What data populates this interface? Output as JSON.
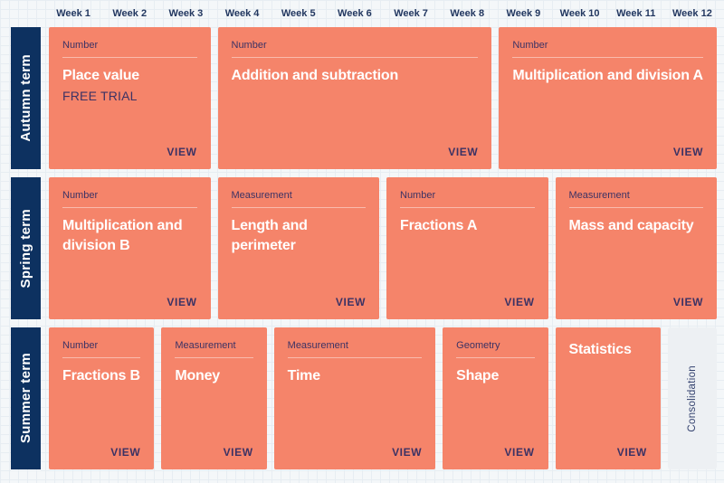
{
  "weeks": [
    "Week 1",
    "Week 2",
    "Week 3",
    "Week 4",
    "Week 5",
    "Week 6",
    "Week 7",
    "Week 8",
    "Week 9",
    "Week 10",
    "Week 11",
    "Week 12"
  ],
  "view_label": "VIEW",
  "colors": {
    "background": "#f4f7f9",
    "gridline": "#e7edf2",
    "navy": "#0d3160",
    "card": "#f5846a",
    "card_text": "#3c3264",
    "week_text": "#223760",
    "consolidation_bg": "#edf0f3",
    "consolidation_text": "#33416e"
  },
  "terms": [
    {
      "label": "Autumn term",
      "blocks": [
        {
          "category": "Number",
          "title": "Place value",
          "subtitle": "FREE TRIAL",
          "span": 3
        },
        {
          "category": "Number",
          "title": "Addition and subtraction",
          "span": 5
        },
        {
          "category": "Number",
          "title": "Multiplication and division A",
          "span": 4
        }
      ]
    },
    {
      "label": "Spring term",
      "blocks": [
        {
          "category": "Number",
          "title": "Multiplication and division B",
          "span": 3
        },
        {
          "category": "Measurement",
          "title": "Length and perimeter",
          "span": 3
        },
        {
          "category": "Number",
          "title": "Fractions A",
          "span": 3
        },
        {
          "category": "Measurement",
          "title": "Mass and capacity",
          "span": 3
        }
      ]
    },
    {
      "label": "Summer term",
      "blocks": [
        {
          "category": "Number",
          "title": "Fractions B",
          "span": 2
        },
        {
          "category": "Measurement",
          "title": "Money",
          "span": 2
        },
        {
          "category": "Measurement",
          "title": "Time",
          "span": 3
        },
        {
          "category": "Geometry",
          "title": "Shape",
          "span": 2
        },
        {
          "category": "",
          "title": "Statistics",
          "span": 2
        },
        {
          "title": "Consolidation",
          "span": 1,
          "type": "consolidation"
        }
      ]
    }
  ]
}
